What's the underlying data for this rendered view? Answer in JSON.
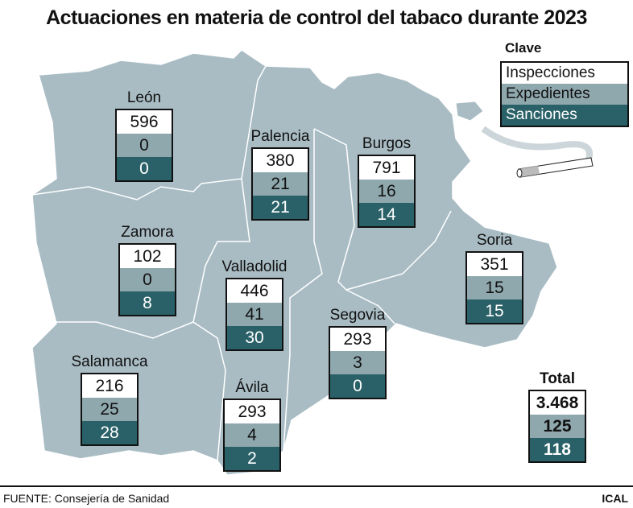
{
  "title": "Actuaciones en materia de control del tabaco durante 2023",
  "colors": {
    "map_fill": "#a9bcc4",
    "inspecciones": "#ffffff",
    "expedientes": "#8fa8ae",
    "sanciones": "#2a6168"
  },
  "legend": {
    "title": "Clave",
    "items": [
      "Inspecciones",
      "Expedientes",
      "Sanciones"
    ],
    "icon": "cigarette-icon"
  },
  "provinces": [
    {
      "name": "León",
      "inspecciones": "596",
      "expedientes": "0",
      "sanciones": "0"
    },
    {
      "name": "Palencia",
      "inspecciones": "380",
      "expedientes": "21",
      "sanciones": "21"
    },
    {
      "name": "Burgos",
      "inspecciones": "791",
      "expedientes": "16",
      "sanciones": "14"
    },
    {
      "name": "Zamora",
      "inspecciones": "102",
      "expedientes": "0",
      "sanciones": "8"
    },
    {
      "name": "Valladolid",
      "inspecciones": "446",
      "expedientes": "41",
      "sanciones": "30"
    },
    {
      "name": "Soria",
      "inspecciones": "351",
      "expedientes": "15",
      "sanciones": "15"
    },
    {
      "name": "Segovia",
      "inspecciones": "293",
      "expedientes": "3",
      "sanciones": "0"
    },
    {
      "name": "Salamanca",
      "inspecciones": "216",
      "expedientes": "25",
      "sanciones": "28"
    },
    {
      "name": "Ávila",
      "inspecciones": "293",
      "expedientes": "4",
      "sanciones": "2"
    }
  ],
  "total": {
    "label": "Total",
    "inspecciones": "3.468",
    "expedientes": "125",
    "sanciones": "118"
  },
  "footer": {
    "source_label": "FUENTE:",
    "source": "Consejería de Sanidad",
    "credit": "ICAL"
  }
}
